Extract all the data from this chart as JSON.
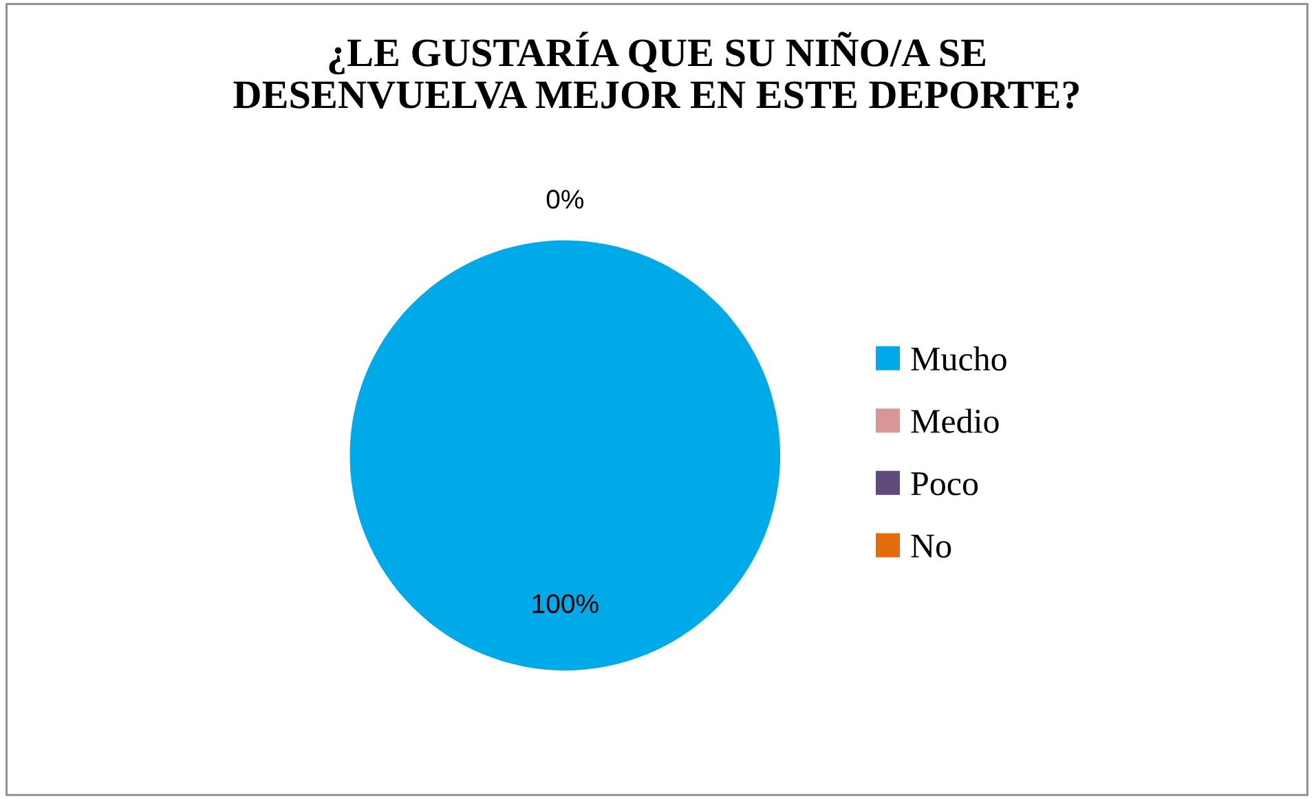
{
  "chart_data": {
    "type": "pie",
    "title": "¿LE GUSTARÍA QUE SU NIÑO/A SE\nDESENVUELVA MEJOR EN ESTE DEPORTE?",
    "categories": [
      "Mucho",
      "Medio",
      "Poco",
      "No"
    ],
    "values": [
      100,
      0,
      0,
      0
    ],
    "colors": [
      "#00a9e8",
      "#d99694",
      "#604a7b",
      "#e46c0a"
    ],
    "value_labels": [
      "100%",
      "0%",
      null,
      null
    ],
    "legend": "right"
  }
}
